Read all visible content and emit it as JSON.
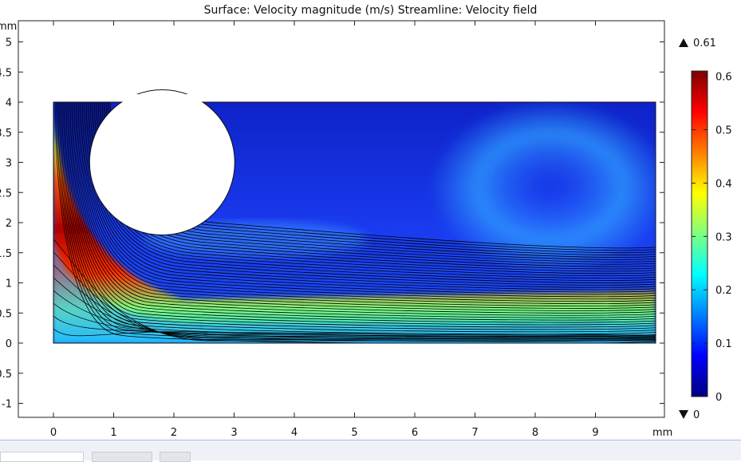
{
  "window": {
    "plot_title": "Surface: Velocity magnitude (m/s)  Streamline: Velocity field"
  },
  "chart_data": {
    "type": "heatmap",
    "title": "Surface: Velocity magnitude (m/s)  Streamline: Velocity field",
    "x_unit": "mm",
    "y_unit": "mm",
    "xlim": [
      0,
      10
    ],
    "ylim": [
      -1,
      5
    ],
    "x_ticks": [
      "0",
      "1",
      "2",
      "3",
      "4",
      "5",
      "6",
      "7",
      "8",
      "9"
    ],
    "y_ticks": [
      "5",
      "4.5",
      "4",
      "3.5",
      "3",
      "2.5",
      "2",
      "1.5",
      "1",
      "0.5",
      "0",
      "-0.5",
      "-1"
    ],
    "domain": {
      "x": [
        0,
        10
      ],
      "y": [
        0,
        4
      ]
    },
    "cylinder": {
      "center": [
        1.8,
        3
      ],
      "radius": 1.2
    },
    "colorbar": {
      "max_label": "0.61",
      "min_label": "0",
      "ticks": [
        "0.6",
        "0.5",
        "0.4",
        "0.3",
        "0.2",
        "0.1",
        "0"
      ],
      "colormap": [
        "#00007f",
        "#0000ff",
        "#007fff",
        "#00ffff",
        "#7fff7f",
        "#ffff00",
        "#ff7f00",
        "#ff0000",
        "#7f0000"
      ]
    },
    "field_max": 0.61,
    "field_min": 0
  }
}
